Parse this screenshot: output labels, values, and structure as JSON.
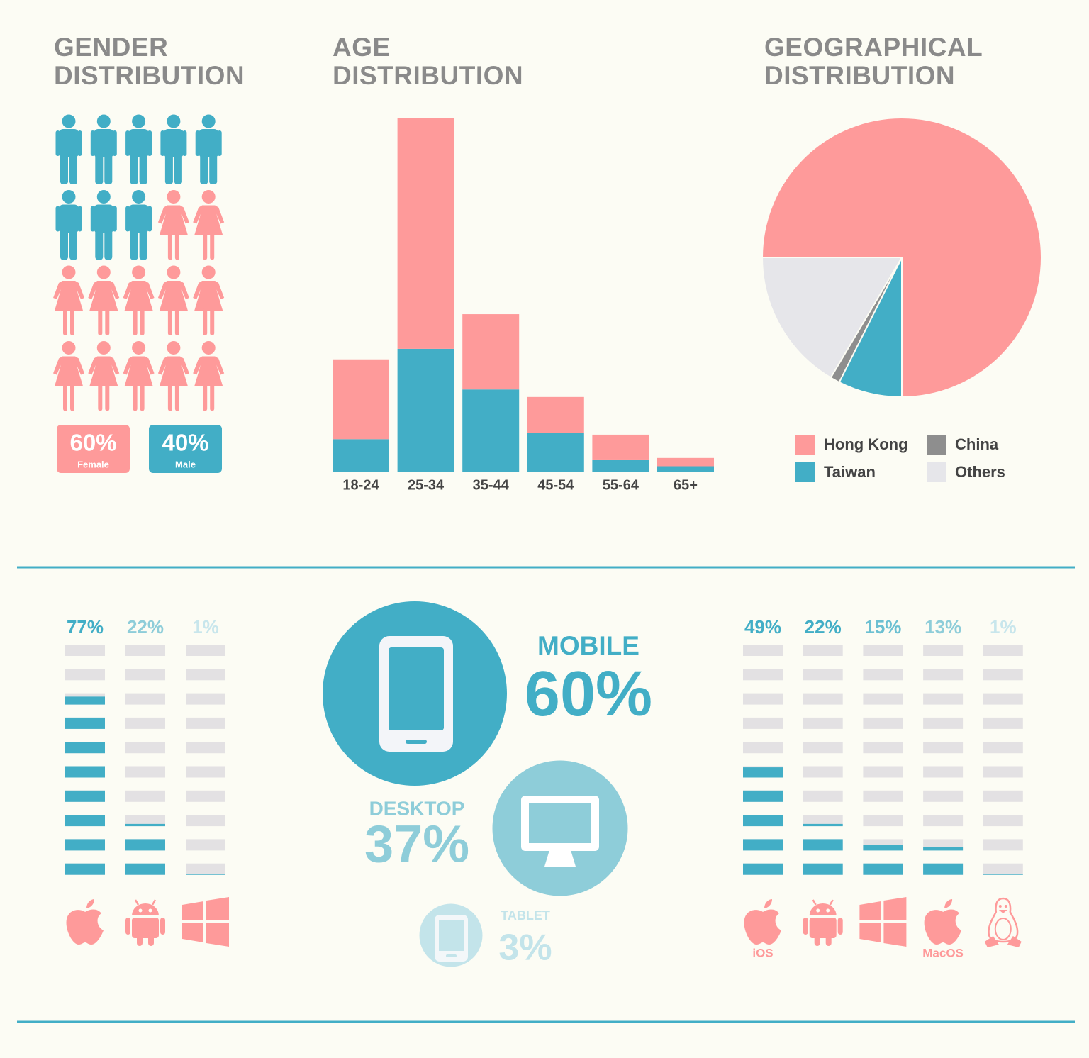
{
  "chart_data": [
    {
      "type": "pictogram",
      "title": "GENDER DISTRIBUTION",
      "categories": [
        "Female",
        "Male"
      ],
      "values": [
        60,
        40
      ],
      "value_labels": [
        "60%",
        "40%"
      ],
      "colors": [
        "#fe9a9a",
        "#42aec6"
      ]
    },
    {
      "type": "stacked-bar",
      "title": "AGE DISTRIBUTION",
      "categories": [
        "18-24",
        "25-34",
        "35-44",
        "45-54",
        "55-64",
        "65+"
      ],
      "series": [
        {
          "color": "#42aec6",
          "values": [
            4.4,
            16.4,
            11.0,
            5.2,
            1.7,
            0.8
          ]
        },
        {
          "color": "#fe9a9a",
          "values": [
            10.6,
            30.7,
            10.0,
            4.8,
            3.3,
            1.1
          ]
        }
      ]
    },
    {
      "type": "pie",
      "title": "GEOGRAPHICAL DISTRIBUTION",
      "categories": [
        "Hong Kong",
        "Taiwan",
        "China",
        "Others"
      ],
      "values": [
        75,
        7.4,
        1.1,
        16.5
      ],
      "colors": [
        "#fe9a9a",
        "#42aec6",
        "#8e8e8e",
        "#e6e6ea"
      ]
    },
    {
      "type": "segment-bar",
      "values": [
        77,
        22,
        1
      ],
      "value_labels": [
        "77%",
        "22%",
        "1%"
      ],
      "label_colors": [
        "#42aec6",
        "#8ecdd9",
        "#c8e6ec"
      ],
      "color": "#42aec6"
    },
    {
      "type": "device-bubble",
      "categories": [
        "MOBILE",
        "DESKTOP",
        "TABLET"
      ],
      "values": [
        60,
        37,
        3
      ],
      "value_labels": [
        "60%",
        "37%",
        "3%"
      ],
      "colors": [
        "#42aec6",
        "#8ecdd9",
        "#c3e4ea"
      ]
    },
    {
      "type": "segment-bar",
      "categories": [
        "iOS",
        null,
        null,
        "MacOS",
        null
      ],
      "values": [
        49,
        22,
        15,
        13,
        1
      ],
      "value_labels": [
        "49%",
        "22%",
        "15%",
        "13%",
        "1%"
      ],
      "label_colors": [
        "#42aec6",
        "#42aec6",
        "#6cc0d2",
        "#8ecdd9",
        "#c8e6ec"
      ],
      "color": "#42aec6"
    }
  ]
}
